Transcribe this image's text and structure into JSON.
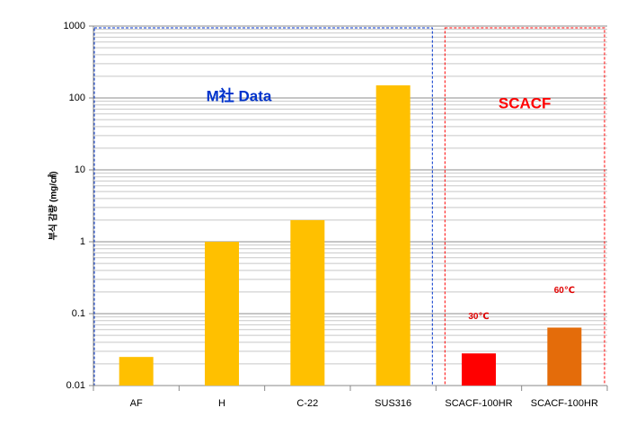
{
  "chart_data": {
    "type": "bar",
    "y_label": "부식 감량 (mg/㎠)",
    "categories": [
      "AF",
      "H",
      "C-22",
      "SUS316",
      "SCACF-100HR",
      "SCACF-100HR"
    ],
    "values": [
      0.025,
      1.0,
      2.0,
      150,
      0.028,
      0.064
    ],
    "colors": [
      "#ffc000",
      "#ffc000",
      "#ffc000",
      "#ffc000",
      "#ff0000",
      "#e46c0a"
    ],
    "bar_notes": [
      null,
      null,
      null,
      null,
      "30℃",
      "60℃"
    ],
    "groups": [
      {
        "label": "M社 Data",
        "color": "#0033cc"
      },
      {
        "label": "SCACF",
        "color": "#ff0000"
      }
    ],
    "log_scale": true,
    "ylim": [
      0.01,
      1000
    ],
    "yticks": [
      0.01,
      0.1,
      1,
      10,
      100,
      1000
    ],
    "grid": true
  }
}
